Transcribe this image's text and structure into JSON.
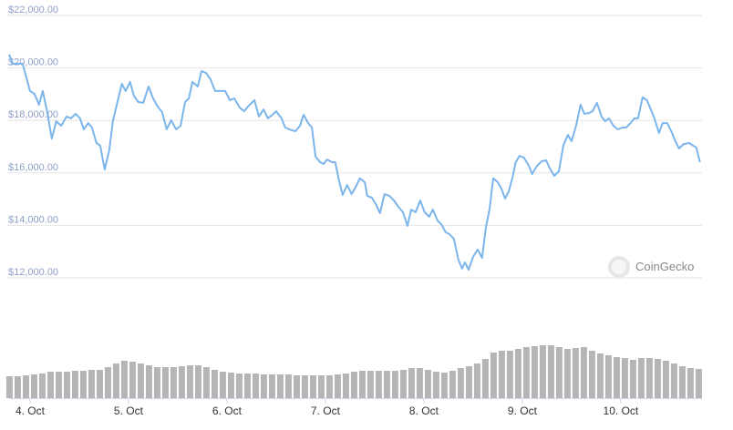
{
  "chart_data": [
    {
      "type": "line",
      "color": "#7cb5ec",
      "grid": true,
      "watermark": "CoinGecko",
      "xlim": [
        -5.1,
        163.8
      ],
      "ylim": [
        12000,
        22000
      ],
      "yticks": [
        {
          "value": 12000,
          "label": "$12,000.00"
        },
        {
          "value": 14000,
          "label": "$14,000.00"
        },
        {
          "value": 16000,
          "label": "$16,000.00"
        },
        {
          "value": 18000,
          "label": "$18,000.00"
        },
        {
          "value": 20000,
          "label": "$20,000.00"
        },
        {
          "value": 22000,
          "label": "$22,000.00"
        }
      ],
      "xticks": [
        {
          "value": 0,
          "label": "4. Oct"
        },
        {
          "value": 24,
          "label": "5. Oct"
        },
        {
          "value": 48,
          "label": "6. Oct"
        },
        {
          "value": 72,
          "label": "7. Oct"
        },
        {
          "value": 96,
          "label": "8. Oct"
        },
        {
          "value": 120,
          "label": "9. Oct"
        },
        {
          "value": 144,
          "label": "10. Oct"
        }
      ],
      "x": [
        -5.1,
        -4.2,
        -1.8,
        0,
        1.1,
        2.2,
        3.1,
        4.2,
        5.3,
        6.4,
        7.6,
        8.9,
        10,
        11.1,
        12.2,
        13.1,
        14.2,
        15.1,
        16.2,
        17.1,
        18.2,
        19.3,
        20.2,
        21.3,
        22.4,
        23.3,
        24.4,
        25.3,
        26.4,
        27.6,
        28.9,
        30,
        31.1,
        32.2,
        33.3,
        34.4,
        35.6,
        36.7,
        37.8,
        38.7,
        39.6,
        40.9,
        41.8,
        42.9,
        44,
        45.1,
        46.2,
        47.6,
        48.7,
        49.8,
        51.1,
        52.2,
        53.3,
        54.7,
        55.8,
        56.9,
        58,
        59.1,
        60,
        61.3,
        62.2,
        63.8,
        64.7,
        65.8,
        66.7,
        67.8,
        68.7,
        69.6,
        70.7,
        71.6,
        72.4,
        73.6,
        74.4,
        75.3,
        76.2,
        77.3,
        78.4,
        79.3,
        80.4,
        81.6,
        82.2,
        83.3,
        84.4,
        85.3,
        86.4,
        87.6,
        88.7,
        89.8,
        90.9,
        92,
        92.9,
        94,
        95.1,
        96.2,
        97.3,
        98.2,
        99.3,
        100.4,
        101.3,
        102.2,
        103.3,
        104.4,
        105.3,
        106,
        106.9,
        108,
        109.1,
        110.2,
        111.1,
        112,
        112.9,
        114,
        114.9,
        115.8,
        116.7,
        117.6,
        118.4,
        119.3,
        120.4,
        121.6,
        122.4,
        123.6,
        124.7,
        125.8,
        126.7,
        127.8,
        128.9,
        130,
        131.1,
        132,
        133.1,
        134.2,
        135.1,
        136.2,
        137.1,
        138.2,
        139.3,
        140.2,
        141.1,
        142.2,
        143.3,
        144.4,
        145.3,
        146.4,
        147.3,
        148.2,
        149.3,
        150.4,
        151.3,
        152.2,
        153.3,
        154.2,
        155.3,
        156.4,
        157.3,
        158.2,
        159.3,
        160.7,
        161.6,
        162.4,
        163.3
      ],
      "values": [
        20510,
        20160,
        20160,
        19120,
        19010,
        18600,
        19120,
        18320,
        17310,
        17970,
        17800,
        18150,
        18080,
        18250,
        18080,
        17660,
        17900,
        17730,
        17140,
        17040,
        16130,
        16860,
        17970,
        18700,
        19400,
        19120,
        19470,
        18940,
        18700,
        18670,
        19290,
        18840,
        18530,
        18320,
        17660,
        18010,
        17660,
        17800,
        18700,
        18840,
        19470,
        19290,
        19880,
        19810,
        19570,
        19120,
        19120,
        19120,
        18770,
        18840,
        18490,
        18350,
        18560,
        18770,
        18150,
        18420,
        18080,
        18220,
        18350,
        18080,
        17730,
        17630,
        17590,
        17800,
        18220,
        17900,
        17730,
        16620,
        16410,
        16340,
        16510,
        16410,
        16410,
        15720,
        15160,
        15540,
        15190,
        15440,
        15790,
        15650,
        15130,
        15060,
        14780,
        14470,
        15190,
        15130,
        14950,
        14710,
        14500,
        13980,
        14600,
        14500,
        14950,
        14500,
        14330,
        14600,
        14190,
        14010,
        13740,
        13670,
        13490,
        12700,
        12350,
        12590,
        12310,
        12800,
        13080,
        12760,
        13910,
        14600,
        15790,
        15650,
        15400,
        15020,
        15300,
        15820,
        16410,
        16650,
        16580,
        16270,
        15960,
        16270,
        16440,
        16480,
        16170,
        15890,
        16060,
        17040,
        17450,
        17210,
        17800,
        18600,
        18250,
        18280,
        18350,
        18670,
        18150,
        17970,
        18080,
        17800,
        17660,
        17730,
        17730,
        17900,
        18080,
        18080,
        18880,
        18770,
        18420,
        18080,
        17520,
        17900,
        17900,
        17560,
        17210,
        16930,
        17100,
        17140,
        17040,
        16970,
        16410
      ]
    },
    {
      "type": "bar",
      "color": "#b5b5b5",
      "xlim": [
        -5.1,
        163.8
      ],
      "ylim": [
        0,
        60
      ],
      "x": [
        -5,
        -3,
        -1,
        1,
        3,
        5,
        7,
        9,
        11,
        13,
        15,
        17,
        19,
        21,
        23,
        25,
        27,
        29,
        31,
        33,
        35,
        37,
        39,
        41,
        43,
        45,
        47,
        49,
        51,
        53,
        55,
        57,
        59,
        61,
        63,
        65,
        67,
        69,
        71,
        73,
        75,
        77,
        79,
        81,
        83,
        85,
        87,
        89,
        91,
        93,
        95,
        97,
        99,
        101,
        103,
        105,
        107,
        109,
        111,
        113,
        115,
        117,
        119,
        121,
        123,
        125,
        127,
        129,
        131,
        133,
        135,
        137,
        139,
        141,
        143,
        145,
        147,
        149,
        151,
        153,
        155,
        157,
        159,
        161,
        163
      ],
      "values": [
        24,
        24,
        25,
        26,
        27,
        29,
        29,
        29,
        30,
        30,
        31,
        31,
        34,
        38,
        41,
        40,
        38,
        36,
        34,
        34,
        34,
        35,
        36,
        36,
        34,
        31,
        29,
        28,
        27,
        27,
        27,
        26,
        26,
        26,
        26,
        25,
        25,
        25,
        25,
        25,
        26,
        27,
        29,
        30,
        30,
        30,
        30,
        30,
        31,
        33,
        33,
        31,
        29,
        28,
        30,
        33,
        35,
        38,
        43,
        50,
        52,
        52,
        54,
        56,
        57,
        58,
        58,
        56,
        54,
        55,
        56,
        52,
        49,
        47,
        45,
        44,
        42,
        44,
        44,
        43,
        41,
        38,
        35,
        33,
        32
      ]
    }
  ]
}
